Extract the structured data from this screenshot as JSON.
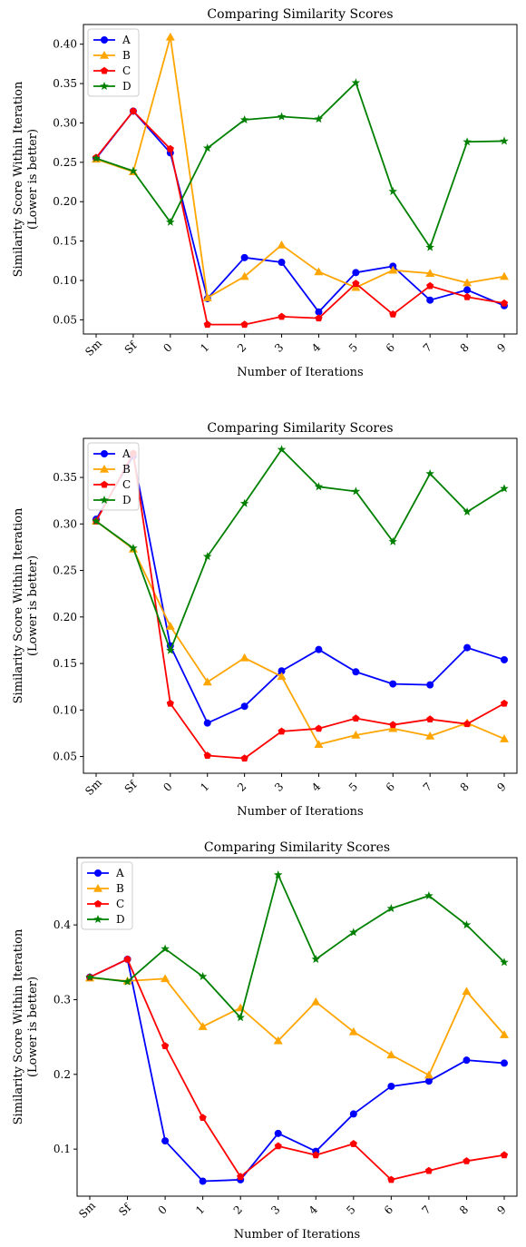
{
  "chart_data": [
    {
      "type": "line",
      "title": "Comparing Similarity Scores",
      "xlabel": "Number of Iterations",
      "ylabel": [
        "Similarity Score Within Iteration",
        "(Lower is better)"
      ],
      "categories": [
        "Sm",
        "Sf",
        "0",
        "1",
        "2",
        "3",
        "4",
        "5",
        "6",
        "7",
        "8",
        "9"
      ],
      "yticks": [
        0.05,
        0.1,
        0.15,
        0.2,
        0.25,
        0.3,
        0.35,
        0.4
      ],
      "ytick_labels": [
        "0.05",
        "0.10",
        "0.15",
        "0.20",
        "0.25",
        "0.30",
        "0.35",
        "0.40"
      ],
      "ylim": [
        0.032,
        0.425
      ],
      "grid": false,
      "legend": "top-left",
      "series": [
        {
          "name": "A",
          "color": "#0000ff",
          "marker": "circle",
          "values": [
            0.255,
            0.315,
            0.262,
            0.077,
            0.129,
            0.123,
            0.06,
            0.11,
            0.118,
            0.075,
            0.088,
            0.068
          ]
        },
        {
          "name": "B",
          "color": "#ffa500",
          "marker": "triangle",
          "values": [
            0.254,
            0.238,
            0.409,
            0.078,
            0.105,
            0.145,
            0.111,
            0.091,
            0.113,
            0.109,
            0.097,
            0.105
          ]
        },
        {
          "name": "C",
          "color": "#ff0000",
          "marker": "pentagon",
          "values": [
            0.256,
            0.315,
            0.267,
            0.044,
            0.044,
            0.054,
            0.052,
            0.096,
            0.057,
            0.093,
            0.079,
            0.071
          ]
        },
        {
          "name": "D",
          "color": "#008000",
          "marker": "star",
          "values": [
            0.255,
            0.239,
            0.174,
            0.268,
            0.304,
            0.308,
            0.305,
            0.351,
            0.213,
            0.142,
            0.276,
            0.277
          ]
        }
      ]
    },
    {
      "type": "line",
      "title": "Comparing Similarity Scores",
      "xlabel": "Number of Iterations",
      "ylabel": [
        "Similarity Score Within Iteration",
        "(Lower is better)"
      ],
      "categories": [
        "Sm",
        "Sf",
        "0",
        "1",
        "2",
        "3",
        "4",
        "5",
        "6",
        "7",
        "8",
        "9"
      ],
      "yticks": [
        0.05,
        0.1,
        0.15,
        0.2,
        0.25,
        0.3,
        0.35
      ],
      "ytick_labels": [
        "0.05",
        "0.10",
        "0.15",
        "0.20",
        "0.25",
        "0.30",
        "0.35"
      ],
      "ylim": [
        0.032,
        0.392
      ],
      "grid": false,
      "legend": "top-left",
      "series": [
        {
          "name": "A",
          "color": "#0000ff",
          "marker": "circle",
          "values": [
            0.305,
            0.373,
            0.169,
            0.086,
            0.104,
            0.142,
            0.165,
            0.141,
            0.128,
            0.127,
            0.167,
            0.154
          ]
        },
        {
          "name": "B",
          "color": "#ffa500",
          "marker": "triangle",
          "values": [
            0.303,
            0.273,
            0.19,
            0.13,
            0.156,
            0.136,
            0.063,
            0.073,
            0.08,
            0.072,
            0.086,
            0.069
          ]
        },
        {
          "name": "C",
          "color": "#ff0000",
          "marker": "pentagon",
          "values": [
            0.303,
            0.376,
            0.107,
            0.051,
            0.048,
            0.077,
            0.08,
            0.091,
            0.084,
            0.09,
            0.085,
            0.107
          ]
        },
        {
          "name": "D",
          "color": "#008000",
          "marker": "star",
          "values": [
            0.303,
            0.274,
            0.164,
            0.265,
            0.322,
            0.38,
            0.34,
            0.335,
            0.281,
            0.354,
            0.313,
            0.338
          ]
        }
      ]
    },
    {
      "type": "line",
      "title": "Comparing Similarity Scores",
      "xlabel": "Number of Iterations",
      "ylabel": [
        "Similarity Score Within Iteration",
        "(Lower is better)"
      ],
      "categories": [
        "Sm",
        "Sf",
        "0",
        "1",
        "2",
        "3",
        "4",
        "5",
        "6",
        "7",
        "8",
        "9"
      ],
      "yticks": [
        0.1,
        0.2,
        0.3,
        0.4
      ],
      "ytick_labels": [
        "0.1",
        "0.2",
        "0.3",
        "0.4"
      ],
      "ylim": [
        0.037,
        0.49
      ],
      "grid": false,
      "legend": "top-left",
      "series": [
        {
          "name": "A",
          "color": "#0000ff",
          "marker": "circle",
          "values": [
            0.33,
            0.354,
            0.111,
            0.057,
            0.059,
            0.121,
            0.097,
            0.147,
            0.184,
            0.191,
            0.219,
            0.215
          ]
        },
        {
          "name": "B",
          "color": "#ffa500",
          "marker": "triangle",
          "values": [
            0.329,
            0.325,
            0.328,
            0.264,
            0.289,
            0.245,
            0.297,
            0.257,
            0.226,
            0.199,
            0.311,
            0.253
          ]
        },
        {
          "name": "C",
          "color": "#ff0000",
          "marker": "pentagon",
          "values": [
            0.33,
            0.354,
            0.238,
            0.142,
            0.063,
            0.104,
            0.092,
            0.107,
            0.059,
            0.071,
            0.084,
            0.092
          ]
        },
        {
          "name": "D",
          "color": "#008000",
          "marker": "star",
          "values": [
            0.33,
            0.324,
            0.368,
            0.331,
            0.276,
            0.467,
            0.354,
            0.39,
            0.422,
            0.439,
            0.4,
            0.35
          ]
        }
      ]
    }
  ]
}
